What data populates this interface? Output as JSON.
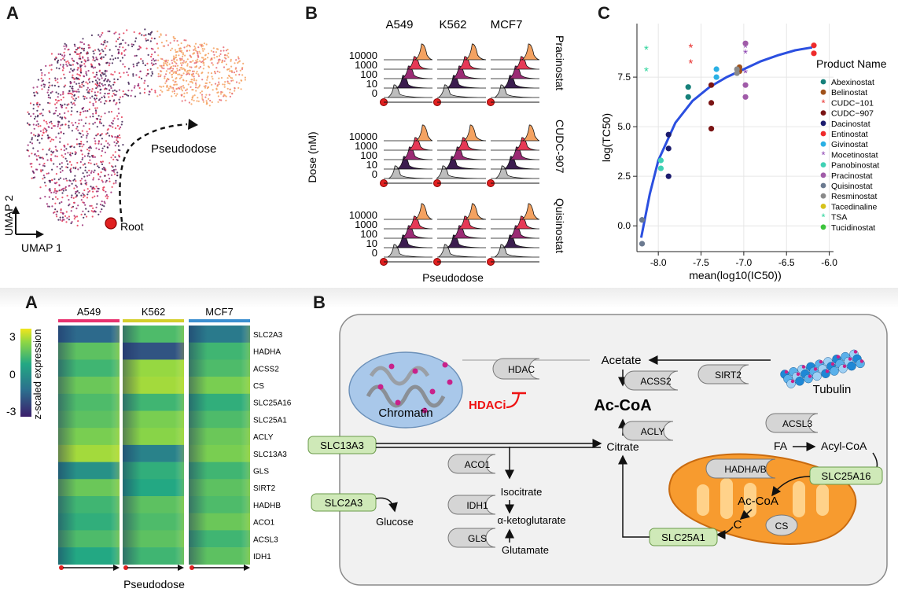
{
  "top": {
    "panel_a": {
      "letter": "A",
      "pseudodose_label": "Pseudodose",
      "root_label": "Root",
      "umap1": "UMAP 1",
      "umap2": "UMAP 2"
    },
    "panel_b": {
      "letter": "B",
      "columns": [
        "A549",
        "K562",
        "MCF7"
      ],
      "rows": [
        "Pracinostat",
        "CUDC-907",
        "Quisinostat"
      ],
      "dose_ticks": [
        "10000",
        "1000",
        "100",
        "10",
        "0"
      ],
      "ylabel": "Dose (nM)",
      "xlabel": "Pseudodose",
      "dose_colors": [
        "#f4a261",
        "#e63956",
        "#9b2a74",
        "#3b1d4f",
        "#bdbdbd"
      ]
    },
    "panel_c": {
      "letter": "C"
    }
  },
  "chart_data": {
    "type": "scatter",
    "xlabel": "mean(log10(IC50))",
    "ylabel": "log(TC50)",
    "xlim": [
      -8.25,
      -5.95
    ],
    "ylim": [
      -1.3,
      10.2
    ],
    "x_ticks": [
      -8.0,
      -7.5,
      -7.0,
      -6.5,
      -6.0
    ],
    "x_tick_labels": [
      "-8.0",
      "-7.5",
      "-7.0",
      "-6.5",
      "-6.0"
    ],
    "y_ticks": [
      0,
      2.5,
      5,
      7.5
    ],
    "y_tick_labels": [
      "0.0",
      "2.5",
      "5.0",
      "7.5"
    ],
    "grid": true,
    "legend_title": "Product Name",
    "legend_position": "right",
    "fit_curve": [
      [
        -8.2,
        -0.6
      ],
      [
        -8.1,
        1.6
      ],
      [
        -8.0,
        3.3
      ],
      [
        -7.8,
        5.2
      ],
      [
        -7.6,
        6.3
      ],
      [
        -7.4,
        7.0
      ],
      [
        -7.2,
        7.5
      ],
      [
        -7.0,
        7.9
      ],
      [
        -6.8,
        8.3
      ],
      [
        -6.6,
        8.6
      ],
      [
        -6.4,
        8.85
      ],
      [
        -6.2,
        9.0
      ]
    ],
    "series": [
      {
        "name": "Abexinostat",
        "color": "#16807a",
        "marker": "dot",
        "points": [
          [
            -7.65,
            6.5
          ],
          [
            -7.65,
            7.0
          ]
        ]
      },
      {
        "name": "Belinostat",
        "color": "#a0521a",
        "marker": "dot",
        "points": [
          [
            -7.05,
            7.8
          ],
          [
            -7.05,
            8.0
          ]
        ]
      },
      {
        "name": "CUDC−101",
        "color": "#e8312f",
        "marker": "star",
        "points": [
          [
            -7.62,
            9.0
          ],
          [
            -7.62,
            8.2
          ]
        ]
      },
      {
        "name": "CUDC−907",
        "color": "#7a1414",
        "marker": "dot",
        "points": [
          [
            -7.38,
            7.1
          ],
          [
            -7.38,
            4.9
          ],
          [
            -7.38,
            6.2
          ]
        ]
      },
      {
        "name": "Dacinostat",
        "color": "#1b1b6e",
        "marker": "dot",
        "points": [
          [
            -7.88,
            3.9
          ],
          [
            -7.88,
            2.5
          ],
          [
            -7.88,
            4.6
          ]
        ]
      },
      {
        "name": "Entinostat",
        "color": "#ee2b2b",
        "marker": "dot",
        "points": [
          [
            -6.18,
            9.1
          ],
          [
            -6.18,
            8.7
          ]
        ]
      },
      {
        "name": "Givinostat",
        "color": "#2ab0e4",
        "marker": "dot",
        "points": [
          [
            -7.32,
            7.9
          ],
          [
            -7.32,
            7.5
          ]
        ]
      },
      {
        "name": "Mocetinostat",
        "color": "#8a3fb0",
        "marker": "star",
        "points": [
          [
            -6.98,
            9.0
          ],
          [
            -6.98,
            8.7
          ],
          [
            -6.98,
            7.7
          ]
        ]
      },
      {
        "name": "Panobinostat",
        "color": "#3fd1b4",
        "marker": "dot",
        "points": [
          [
            -7.97,
            3.3
          ],
          [
            -7.97,
            2.9
          ]
        ]
      },
      {
        "name": "Pracinostat",
        "color": "#a05ba8",
        "marker": "dot",
        "points": [
          [
            -6.98,
            6.5
          ],
          [
            -6.98,
            7.1
          ],
          [
            -6.98,
            9.2
          ]
        ]
      },
      {
        "name": "Quisinostat",
        "color": "#6b7a90",
        "marker": "dot",
        "points": [
          [
            -8.19,
            0.3
          ],
          [
            -8.19,
            -0.9
          ]
        ]
      },
      {
        "name": "Resminostat",
        "color": "#8a8a8a",
        "marker": "dot",
        "points": [
          [
            -7.08,
            7.7
          ],
          [
            -7.08,
            7.9
          ]
        ]
      },
      {
        "name": "Tacedinaline",
        "color": "#d6c21a",
        "marker": "dot",
        "points": []
      },
      {
        "name": "TSA",
        "color": "#2ad49a",
        "marker": "star",
        "points": [
          [
            -8.14,
            8.9
          ],
          [
            -8.14,
            7.8
          ]
        ]
      },
      {
        "name": "Tucidinostat",
        "color": "#3cc43c",
        "marker": "dot",
        "points": []
      }
    ]
  },
  "bottom": {
    "panel_a": {
      "letter": "A",
      "columns": [
        "A549",
        "K562",
        "MCF7"
      ],
      "column_colors": [
        "#e8316f",
        "#d4cf2a",
        "#3b8fd0"
      ],
      "genes": [
        "SLC2A3",
        "HADHA",
        "ACSS2",
        "CS",
        "SLC25A16",
        "SLC25A1",
        "ACLY",
        "SLC13A3",
        "GLS",
        "SIRT2",
        "HADHB",
        "ACO1",
        "ACSL3",
        "IDH1"
      ],
      "colorbar_ticks": [
        "3",
        "0",
        "-3"
      ],
      "colorbar_label": "z-scaled expression",
      "xlabel": "Pseudodose",
      "heat_values": [
        [
          -0.8,
          0.3,
          -0.6
        ],
        [
          0.4,
          -1.0,
          0.2
        ],
        [
          0.2,
          0.8,
          0.3
        ],
        [
          0.5,
          0.9,
          0.6
        ],
        [
          0.3,
          0.2,
          0.1
        ],
        [
          0.4,
          0.6,
          0.3
        ],
        [
          0.6,
          0.7,
          0.5
        ],
        [
          0.9,
          -0.5,
          0.6
        ],
        [
          -0.3,
          0.1,
          0.2
        ],
        [
          0.5,
          0.0,
          0.4
        ],
        [
          0.2,
          0.4,
          0.3
        ],
        [
          0.1,
          0.3,
          0.5
        ],
        [
          0.3,
          0.4,
          0.2
        ],
        [
          0.0,
          0.2,
          0.4
        ]
      ]
    },
    "panel_b": {
      "letter": "B",
      "labels": {
        "acetate": "Acetate",
        "acoa": "Ac-CoA",
        "citrate": "Citrate",
        "isocitrate": "Isocitrate",
        "akg": "α-ketoglutarate",
        "glutamate": "Glutamate",
        "glucose": "Glucose",
        "fa": "FA",
        "acylcoa": "Acyl-CoA",
        "mito_acoa": "Ac-CoA",
        "mito_c": "C",
        "chromatin": "Chromatin",
        "tubulin": "Tubulin",
        "hdaci": "HDACi"
      },
      "enzymes": {
        "hdac": "HDAC",
        "acss2": "ACSS2",
        "sirt2": "SIRT2",
        "acly": "ACLY",
        "acsl3": "ACSL3",
        "aco1": "ACO1",
        "idh1": "IDH1",
        "gls": "GLS",
        "hadhab": "HADHA/B",
        "cs": "CS"
      },
      "transporters": {
        "slc13a3": "SLC13A3",
        "slc2a3": "SLC2A3",
        "slc25a16": "SLC25A16",
        "slc25a1": "SLC25A1"
      }
    }
  }
}
